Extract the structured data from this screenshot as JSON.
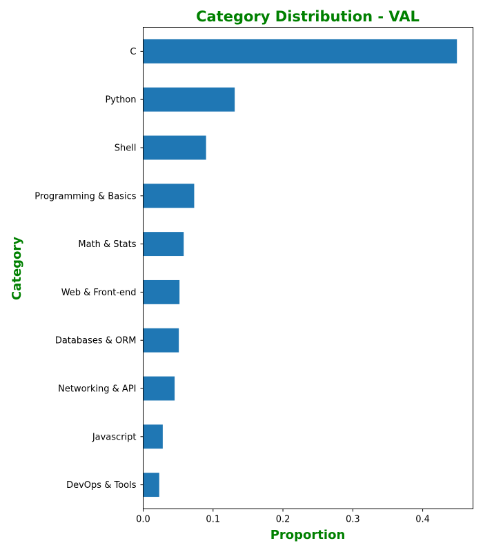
{
  "chart_data": {
    "type": "bar",
    "orientation": "horizontal",
    "title": "Category Distribution - VAL",
    "xlabel": "Proportion",
    "ylabel": "Category",
    "categories": [
      "C",
      "Python",
      "Shell",
      "Programming & Basics",
      "Math & Stats",
      "Web & Front-end",
      "Databases & ORM",
      "Networking & API",
      "Javascript",
      "DevOps & Tools"
    ],
    "values": [
      0.449,
      0.131,
      0.09,
      0.073,
      0.058,
      0.052,
      0.051,
      0.045,
      0.028,
      0.023
    ],
    "xlim": [
      0,
      0.472
    ],
    "xticks": [
      0.0,
      0.1,
      0.2,
      0.3,
      0.4
    ],
    "xtick_labels": [
      "0.0",
      "0.1",
      "0.2",
      "0.3",
      "0.4"
    ],
    "grid": false,
    "legend": "none",
    "colors": {
      "bar": "#1f77b4",
      "title": "#008000",
      "axis_title": "#008000",
      "axis": "#000000"
    }
  }
}
